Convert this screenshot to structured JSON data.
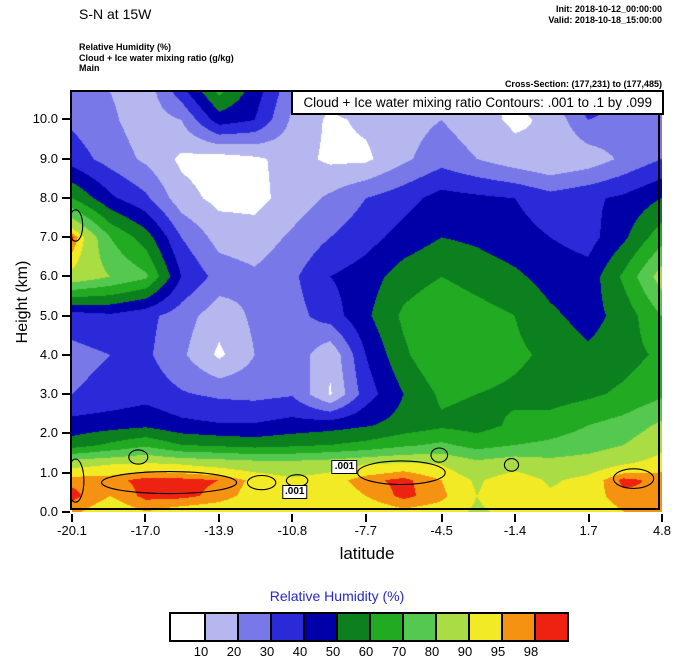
{
  "header": {
    "title": "S-N at 15W",
    "init": "Init: 2018-10-12_00:00:00",
    "valid": "Valid: 2018-10-18_15:00:00",
    "meta_lines": [
      "Relative Humidity  (%)",
      "Cloud + Ice water mixing ratio  (g/kg)",
      "Main"
    ],
    "cross_section": "Cross-Section: (177,231) to (177,485)"
  },
  "plot": {
    "contour_note": "Cloud + Ice water mixing ratio Contours: .001 to .1 by .099",
    "xlabel": "latitude",
    "ylabel": "Height (km)"
  },
  "colorbar": {
    "title": "Relative Humidity  (%)",
    "title_color": "#2828cc"
  },
  "chart_data": {
    "type": "heatmap",
    "field": "Relative Humidity (%)",
    "overlay": "Cloud + Ice water mixing ratio (g/kg) contours .001 to .1 by .099",
    "xlabel": "latitude",
    "ylabel": "Height (km)",
    "xlim": [
      -20.1,
      4.8
    ],
    "ylim": [
      0,
      10.7
    ],
    "x_tick_vals": [
      -20.1,
      -17.0,
      -13.9,
      -10.8,
      -7.7,
      -4.5,
      -1.4,
      1.7,
      4.8
    ],
    "x_tick_labels": [
      "-20.1",
      "-17.0",
      "-13.9",
      "-10.8",
      "-7.7",
      "-4.5",
      "-1.4",
      "1.7",
      "4.8"
    ],
    "y_tick_vals": [
      0,
      1,
      2,
      3,
      4,
      5,
      6,
      7,
      8,
      9,
      10
    ],
    "y_tick_labels": [
      "0.0",
      "1.0",
      "2.0",
      "3.0",
      "4.0",
      "5.0",
      "6.0",
      "7.0",
      "8.0",
      "9.0",
      "10.0"
    ],
    "levels": [
      10,
      20,
      30,
      40,
      50,
      60,
      70,
      80,
      90,
      95,
      98
    ],
    "colors": [
      "#ffffff",
      "#b7b7f0",
      "#7878e8",
      "#2a2ad8",
      "#0000a8",
      "#0c801e",
      "#22aa22",
      "#55c94f",
      "#aadd44",
      "#f2ea25",
      "#f59211",
      "#ee2211"
    ],
    "x_lats": [
      -20.1,
      -18.5,
      -17.0,
      -15.5,
      -13.9,
      -12.4,
      -10.8,
      -9.2,
      -7.7,
      -6.1,
      -4.5,
      -3.0,
      -1.4,
      0.1,
      1.7,
      3.2,
      4.8
    ],
    "y_km": [
      0,
      0.4,
      0.8,
      1.2,
      1.7,
      2.2,
      3,
      4,
      5,
      6,
      7,
      8,
      9,
      10,
      10.7
    ],
    "rh_grid": [
      [
        96,
        92,
        95,
        93,
        92,
        90,
        90,
        91,
        92,
        94,
        93,
        89,
        92,
        93,
        92,
        95,
        96
      ],
      [
        99,
        95,
        99,
        99,
        97,
        93,
        92,
        92,
        95,
        99,
        96,
        90,
        95,
        91,
        93,
        97,
        98
      ],
      [
        97,
        97,
        99,
        99,
        98,
        94,
        91,
        93,
        97,
        99,
        95,
        89,
        94,
        89,
        92,
        99,
        97
      ],
      [
        88,
        90,
        92,
        90,
        88,
        86,
        85,
        87,
        90,
        92,
        90,
        84,
        87,
        84,
        86,
        90,
        93
      ],
      [
        55,
        62,
        68,
        60,
        58,
        56,
        58,
        60,
        63,
        68,
        72,
        66,
        70,
        72,
        75,
        80,
        88
      ],
      [
        44,
        46,
        48,
        43,
        41,
        41,
        44,
        46,
        49,
        54,
        58,
        56,
        62,
        65,
        70,
        74,
        82
      ],
      [
        30,
        33,
        36,
        31,
        28,
        27,
        29,
        9,
        35,
        50,
        62,
        60,
        58,
        55,
        58,
        62,
        68
      ],
      [
        27,
        30,
        32,
        22,
        8,
        20,
        27,
        12,
        40,
        58,
        70,
        66,
        62,
        58,
        52,
        56,
        62
      ],
      [
        35,
        38,
        33,
        25,
        14,
        22,
        26,
        35,
        48,
        62,
        68,
        64,
        60,
        52,
        46,
        54,
        70
      ],
      [
        88,
        80,
        72,
        40,
        26,
        22,
        28,
        40,
        45,
        55,
        60,
        56,
        52,
        46,
        44,
        62,
        85
      ],
      [
        99,
        70,
        55,
        30,
        16,
        14,
        22,
        30,
        36,
        44,
        50,
        48,
        44,
        40,
        36,
        48,
        66
      ],
      [
        60,
        42,
        32,
        14,
        7,
        7,
        14,
        22,
        30,
        36,
        44,
        42,
        40,
        34,
        38,
        42,
        50
      ],
      [
        35,
        26,
        18,
        8,
        5,
        8,
        14,
        8,
        8,
        18,
        26,
        20,
        14,
        10,
        14,
        22,
        30
      ],
      [
        28,
        22,
        14,
        20,
        45,
        40,
        18,
        8,
        12,
        16,
        20,
        14,
        8,
        12,
        30,
        26,
        24
      ],
      [
        26,
        20,
        14,
        35,
        62,
        45,
        22,
        12,
        30,
        18,
        16,
        12,
        8,
        20,
        40,
        24,
        22
      ]
    ],
    "cloud_contours": [
      {
        "cx": -16.0,
        "cy": 0.75,
        "rx": 2.85,
        "ry": 0.28
      },
      {
        "cx": -6.2,
        "cy": 1.0,
        "rx": 1.85,
        "ry": 0.3
      },
      {
        "cx": -17.3,
        "cy": 1.4,
        "rx": 0.4,
        "ry": 0.18
      },
      {
        "cx": -4.6,
        "cy": 1.45,
        "rx": 0.35,
        "ry": 0.18
      },
      {
        "cx": -1.55,
        "cy": 1.2,
        "rx": 0.3,
        "ry": 0.16
      },
      {
        "cx": 3.6,
        "cy": 0.85,
        "rx": 0.85,
        "ry": 0.25
      },
      {
        "cx": -19.95,
        "cy": 7.3,
        "rx": 0.3,
        "ry": 0.4
      },
      {
        "cx": -19.95,
        "cy": 0.8,
        "rx": 0.35,
        "ry": 0.55
      },
      {
        "cx": -12.1,
        "cy": 0.75,
        "rx": 0.6,
        "ry": 0.18
      },
      {
        "cx": -10.6,
        "cy": 0.8,
        "rx": 0.45,
        "ry": 0.15
      }
    ],
    "contour_labels": [
      {
        "text": ".001",
        "lat": -10.7,
        "km": 0.5
      },
      {
        "text": ".001",
        "lat": -8.6,
        "km": 1.15
      }
    ]
  }
}
